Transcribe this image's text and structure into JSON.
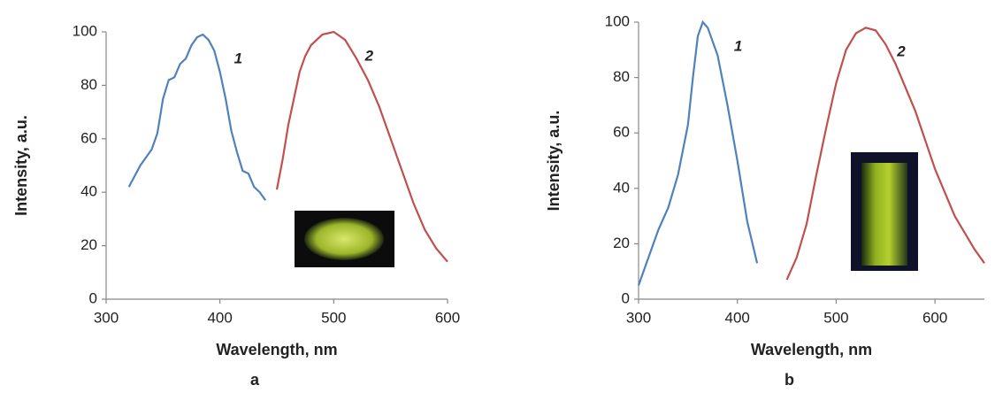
{
  "chart_data": [
    {
      "type": "line",
      "label": "a",
      "x_label": "Wavelength, nm",
      "y_label": "Intensity, a.u.",
      "xlim": [
        300,
        600
      ],
      "ylim": [
        0,
        100
      ],
      "xticks": [
        300,
        400,
        500,
        600
      ],
      "yticks": [
        0,
        20,
        40,
        60,
        80,
        100
      ],
      "series": [
        {
          "name": "1",
          "color": "#4f81bd",
          "x": [
            320,
            330,
            340,
            345,
            350,
            355,
            360,
            365,
            370,
            375,
            380,
            385,
            390,
            395,
            400,
            405,
            410,
            415,
            420,
            425,
            430,
            435,
            440
          ],
          "values": [
            42,
            50,
            56,
            62,
            75,
            82,
            83,
            88,
            90,
            95,
            98,
            99,
            97,
            93,
            85,
            75,
            63,
            55,
            48,
            47,
            42,
            40,
            37
          ]
        },
        {
          "name": "2",
          "color": "#c0504d",
          "x": [
            450,
            455,
            460,
            465,
            470,
            475,
            480,
            490,
            500,
            510,
            520,
            530,
            540,
            550,
            560,
            570,
            580,
            590,
            600
          ],
          "values": [
            41,
            52,
            65,
            75,
            85,
            91,
            95,
            99,
            100,
            97,
            90,
            82,
            72,
            60,
            48,
            36,
            26,
            19,
            14
          ]
        }
      ]
    },
    {
      "type": "line",
      "label": "b",
      "x_label": "Wavelength, nm",
      "y_label": "Intensity, a.u.",
      "xlim": [
        300,
        650
      ],
      "ylim": [
        0,
        100
      ],
      "xticks": [
        300,
        400,
        500,
        600
      ],
      "yticks": [
        0,
        20,
        40,
        60,
        80,
        100
      ],
      "series": [
        {
          "name": "1",
          "color": "#4f81bd",
          "x": [
            300,
            310,
            320,
            330,
            340,
            350,
            355,
            360,
            365,
            370,
            380,
            390,
            400,
            410,
            420
          ],
          "values": [
            5,
            15,
            25,
            33,
            45,
            63,
            80,
            95,
            100,
            98,
            88,
            70,
            50,
            28,
            13
          ]
        },
        {
          "name": "2",
          "color": "#c0504d",
          "x": [
            450,
            460,
            470,
            480,
            490,
            500,
            510,
            520,
            530,
            540,
            550,
            560,
            580,
            600,
            620,
            640,
            650
          ],
          "values": [
            7,
            15,
            27,
            45,
            62,
            78,
            90,
            96,
            98,
            97,
            92,
            85,
            68,
            47,
            30,
            18,
            13
          ]
        }
      ]
    }
  ]
}
